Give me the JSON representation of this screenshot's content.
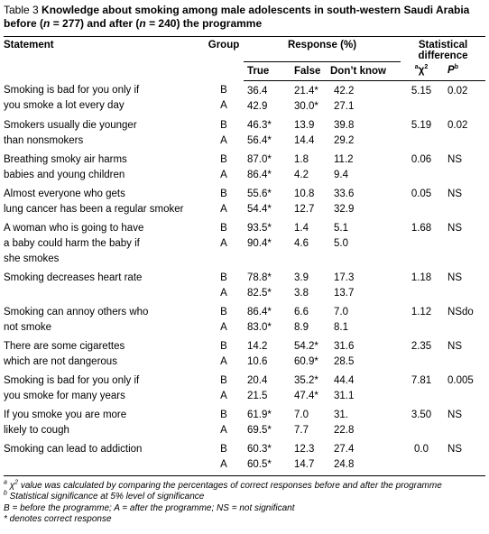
{
  "caption": {
    "label": "Table 3",
    "title_parts": [
      "Knowledge about smoking among male adolescents in south-western Saudi Arabia before (",
      "n",
      " = 277) and after (",
      "n",
      " = 240) the programme"
    ]
  },
  "table": {
    "headers": {
      "statement": "Statement",
      "group": "Group",
      "response": "Response (%)",
      "true": "True",
      "false": "False",
      "dont_know": "Don’t know",
      "statistical": "Statistical difference",
      "chi2": {
        "marker": "a",
        "symbol": "χ",
        "exponent": "2"
      },
      "p": {
        "symbol": "P",
        "marker": "b"
      }
    },
    "rows": [
      {
        "statement": [
          "Smoking is bad for you only if",
          "you smoke a lot every day"
        ],
        "groups": [
          "B",
          "A"
        ],
        "true": [
          "36.4",
          "42.9"
        ],
        "false": [
          "21.4*",
          "30.0*"
        ],
        "dont_know": [
          "42.2",
          "27.1"
        ],
        "chi2": "5.15",
        "p": "0.02"
      },
      {
        "statement": [
          "Smokers usually die younger",
          "than nonsmokers"
        ],
        "groups": [
          "B",
          "A"
        ],
        "true": [
          "46.3*",
          "56.4*"
        ],
        "false": [
          "13.9",
          "14.4"
        ],
        "dont_know": [
          "39.8",
          "29.2"
        ],
        "chi2": "5.19",
        "p": "0.02"
      },
      {
        "statement": [
          "Breathing smoky air harms",
          "babies and young children"
        ],
        "groups": [
          "B",
          "A"
        ],
        "true": [
          "87.0*",
          "86.4*"
        ],
        "false": [
          "1.8",
          "4.2"
        ],
        "dont_know": [
          "11.2",
          "9.4"
        ],
        "chi2": "0.06",
        "p": "NS"
      },
      {
        "statement": [
          "Almost everyone who gets",
          "lung cancer has been a regular smoker"
        ],
        "groups": [
          "B",
          "A"
        ],
        "true": [
          "55.6*",
          "54.4*"
        ],
        "false": [
          "10.8",
          "12.7"
        ],
        "dont_know": [
          "33.6",
          "32.9"
        ],
        "chi2": "0.05",
        "p": "NS"
      },
      {
        "statement": [
          "A woman who is going to have",
          "a baby could harm the baby if",
          "she smokes"
        ],
        "groups": [
          "B",
          "A"
        ],
        "true": [
          "93.5*",
          "90.4*"
        ],
        "false": [
          "1.4",
          "4.6"
        ],
        "dont_know": [
          "5.1",
          "5.0"
        ],
        "chi2": "1.68",
        "p": "NS"
      },
      {
        "statement": [
          "Smoking decreases heart rate"
        ],
        "groups": [
          "B",
          "A"
        ],
        "true": [
          "78.8*",
          "82.5*"
        ],
        "false": [
          "3.9",
          "3.8"
        ],
        "dont_know": [
          "17.3",
          "13.7"
        ],
        "chi2": "1.18",
        "p": "NS"
      },
      {
        "statement": [
          "Smoking can annoy others who",
          "not smoke"
        ],
        "groups": [
          "B",
          "A"
        ],
        "true": [
          "86.4*",
          "83.0*"
        ],
        "false": [
          "6.6",
          "8.9"
        ],
        "dont_know": [
          "7.0",
          "8.1"
        ],
        "chi2": "1.12",
        "p": "NSdo"
      },
      {
        "statement": [
          "There are some cigarettes",
          "which are not dangerous"
        ],
        "groups": [
          "B",
          "A"
        ],
        "true": [
          "14.2",
          "10.6"
        ],
        "false": [
          "54.2*",
          "60.9*"
        ],
        "dont_know": [
          "31.6",
          "28.5"
        ],
        "chi2": "2.35",
        "p": "NS"
      },
      {
        "statement": [
          "Smoking is bad for you only if",
          "you smoke for many years"
        ],
        "groups": [
          "B",
          "A"
        ],
        "true": [
          "20.4",
          "21.5"
        ],
        "false": [
          "35.2*",
          "47.4*"
        ],
        "dont_know": [
          "44.4",
          "31.1"
        ],
        "chi2": "7.81",
        "p": "0.005"
      },
      {
        "statement": [
          "If you smoke you are more",
          "likely to cough"
        ],
        "groups": [
          "B",
          "A"
        ],
        "true": [
          "61.9*",
          "69.5*"
        ],
        "false": [
          "7.0",
          "7.7"
        ],
        "dont_know": [
          "31.",
          "22.8"
        ],
        "chi2": "3.50",
        "p": "NS"
      },
      {
        "statement": [
          "Smoking can lead to addiction"
        ],
        "groups": [
          "B",
          "A"
        ],
        "true": [
          "60.3*",
          "60.5*"
        ],
        "false": [
          "12.3",
          "14.7"
        ],
        "dont_know": [
          "27.4",
          "24.8"
        ],
        "chi2": "0.0",
        "p": "NS"
      }
    ]
  },
  "footnotes": {
    "chi2_note": {
      "marker": "a",
      "symbol": "χ",
      "exponent": "2",
      "text": " value was calculated by comparing the percentages of correct responses before and after the programme"
    },
    "p_note": {
      "marker": "b",
      "text": " Statistical significance at 5% level of significance"
    },
    "abbreviations": "B = before the programme; A = after the programme; NS = not significant",
    "asterisk": "* denotes correct response"
  }
}
